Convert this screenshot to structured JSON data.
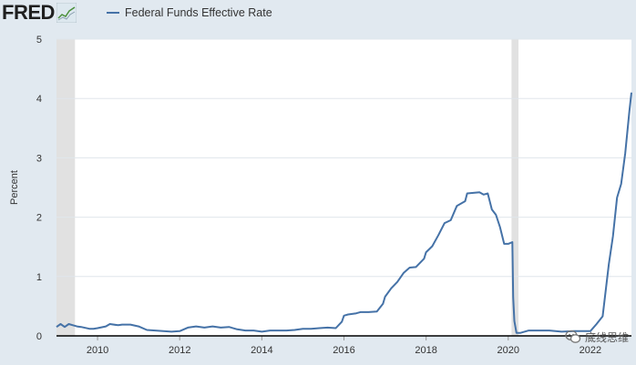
{
  "header": {
    "logo_text": "FRED",
    "logo_icon": "fred-chart-icon",
    "legend_label": "Federal Funds Effective Rate"
  },
  "watermark": {
    "text": "底线思维",
    "icon": "wechat-icon"
  },
  "colors": {
    "series": "#4572a7",
    "recession": "#e1e1e1",
    "plot_bg": "#ffffff",
    "page_bg": "#e1e9f0",
    "grid": "#e0e6ec"
  },
  "chart_data": {
    "type": "line",
    "title": "",
    "xlabel": "",
    "ylabel": "Percent",
    "x_axis": "years",
    "xlim": [
      2009.0,
      2023.0
    ],
    "ylim": [
      0,
      5
    ],
    "grid": true,
    "legend_placement": "top",
    "x_ticks": [
      2010,
      2012,
      2014,
      2016,
      2018,
      2020,
      2022
    ],
    "x_tick_labels": [
      "2010",
      "2012",
      "2014",
      "2016",
      "2018",
      "2020",
      "2022"
    ],
    "y_ticks": [
      0,
      1,
      2,
      3,
      4,
      5
    ],
    "y_tick_labels": [
      "0",
      "1",
      "2",
      "3",
      "4",
      "5"
    ],
    "recession_shading": [
      {
        "start": 2009.0,
        "end": 2009.45
      },
      {
        "start": 2020.08,
        "end": 2020.25
      }
    ],
    "series": [
      {
        "name": "Federal Funds Effective Rate",
        "x": [
          2009.0,
          2009.1,
          2009.2,
          2009.3,
          2009.4,
          2009.5,
          2009.6,
          2009.8,
          2009.9,
          2010.0,
          2010.2,
          2010.3,
          2010.5,
          2010.6,
          2010.8,
          2011.0,
          2011.2,
          2011.4,
          2011.6,
          2011.8,
          2012.0,
          2012.2,
          2012.4,
          2012.6,
          2012.8,
          2013.0,
          2013.2,
          2013.4,
          2013.6,
          2013.8,
          2014.0,
          2014.2,
          2014.4,
          2014.6,
          2014.8,
          2015.0,
          2015.2,
          2015.4,
          2015.6,
          2015.8,
          2015.95,
          2016.0,
          2016.1,
          2016.2,
          2016.3,
          2016.4,
          2016.6,
          2016.8,
          2016.95,
          2017.0,
          2017.15,
          2017.3,
          2017.45,
          2017.6,
          2017.75,
          2017.95,
          2018.0,
          2018.15,
          2018.3,
          2018.45,
          2018.6,
          2018.75,
          2018.95,
          2019.0,
          2019.15,
          2019.3,
          2019.4,
          2019.5,
          2019.6,
          2019.7,
          2019.8,
          2019.9,
          2020.0,
          2020.1,
          2020.12,
          2020.15,
          2020.2,
          2020.3,
          2020.5,
          2020.8,
          2021.0,
          2021.3,
          2021.6,
          2021.9,
          2022.0,
          2022.15,
          2022.3,
          2022.45,
          2022.55,
          2022.65,
          2022.75,
          2022.85,
          2022.95,
          2023.0
        ],
        "y": [
          0.15,
          0.2,
          0.15,
          0.2,
          0.18,
          0.16,
          0.15,
          0.12,
          0.12,
          0.13,
          0.16,
          0.2,
          0.18,
          0.19,
          0.19,
          0.16,
          0.1,
          0.09,
          0.08,
          0.07,
          0.08,
          0.14,
          0.16,
          0.14,
          0.16,
          0.14,
          0.15,
          0.11,
          0.09,
          0.09,
          0.07,
          0.09,
          0.09,
          0.09,
          0.1,
          0.12,
          0.12,
          0.13,
          0.14,
          0.13,
          0.24,
          0.34,
          0.36,
          0.37,
          0.38,
          0.4,
          0.4,
          0.41,
          0.54,
          0.66,
          0.8,
          0.91,
          1.06,
          1.15,
          1.16,
          1.3,
          1.41,
          1.51,
          1.7,
          1.9,
          1.95,
          2.19,
          2.27,
          2.4,
          2.41,
          2.42,
          2.38,
          2.4,
          2.13,
          2.04,
          1.83,
          1.55,
          1.55,
          1.58,
          0.65,
          0.25,
          0.05,
          0.05,
          0.09,
          0.09,
          0.09,
          0.07,
          0.08,
          0.08,
          0.08,
          0.2,
          0.33,
          1.21,
          1.68,
          2.33,
          2.56,
          3.08,
          3.78,
          4.1
        ]
      }
    ]
  }
}
